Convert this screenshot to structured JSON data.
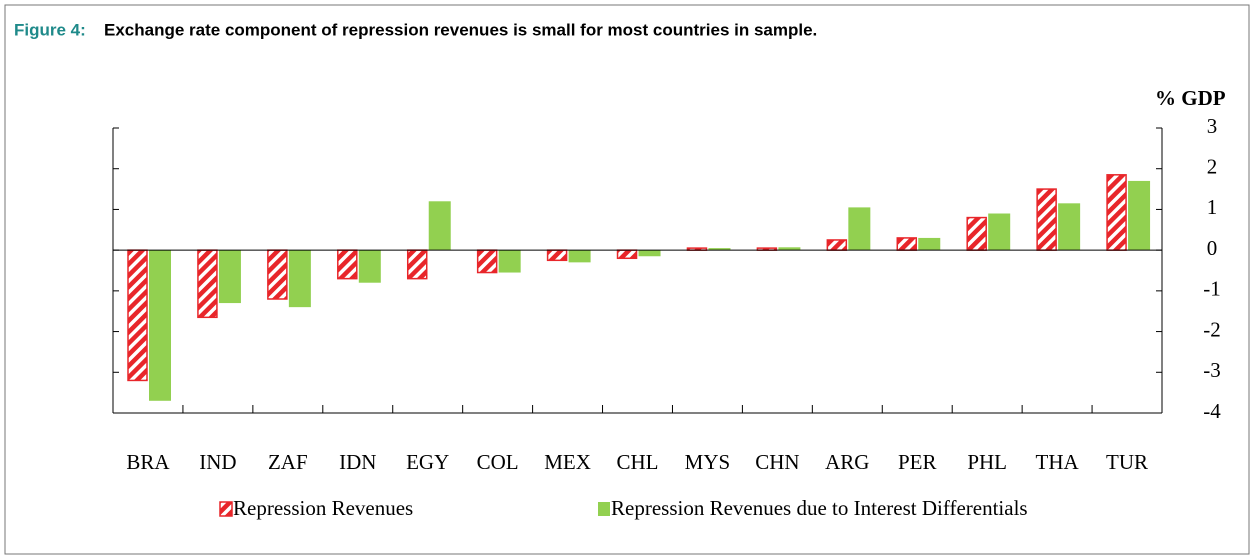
{
  "chart_data": {
    "type": "bar",
    "figure_label": "Figure 4:",
    "title": "Exchange rate component of repression revenues is small for most countries in sample.",
    "y_axis_label": "% GDP",
    "categories": [
      "BRA",
      "IND",
      "ZAF",
      "IDN",
      "EGY",
      "COL",
      "MEX",
      "CHL",
      "MYS",
      "CHN",
      "ARG",
      "PER",
      "PHL",
      "THA",
      "TUR"
    ],
    "series": [
      {
        "name": "Repression Revenues",
        "color": "#e8262a",
        "values": [
          -3.2,
          -1.65,
          -1.2,
          -0.7,
          -0.7,
          -0.55,
          -0.25,
          -0.2,
          0.05,
          0.05,
          0.25,
          0.3,
          0.8,
          1.5,
          1.85
        ]
      },
      {
        "name": "Repression Revenues due to Interest Differentials",
        "color": "#92d050",
        "values": [
          -3.7,
          -1.3,
          -1.4,
          -0.8,
          1.2,
          -0.55,
          -0.3,
          -0.15,
          0.05,
          0.07,
          1.05,
          0.3,
          0.9,
          1.15,
          1.7
        ]
      }
    ],
    "ylim": [
      -4,
      3
    ],
    "yticks": [
      3,
      2,
      1,
      0,
      -1,
      -2,
      -3,
      -4
    ],
    "legend": "bottom",
    "grid": false
  }
}
